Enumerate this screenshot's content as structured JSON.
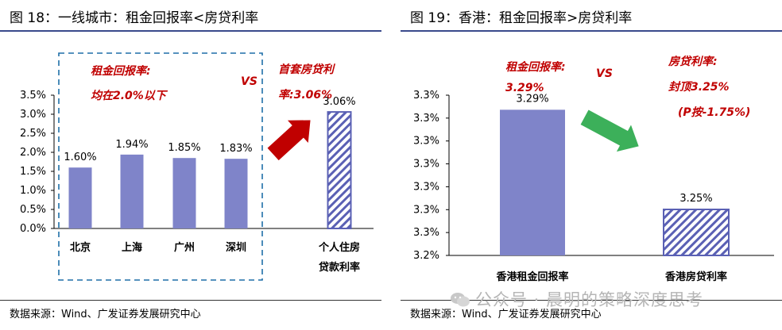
{
  "left": {
    "title": "图 18：一线城市：租金回报率<房贷利率",
    "source": "数据来源：Wind、广发证券发展研究中心",
    "annotations": {
      "rent_line1": "租金回报率:",
      "rent_line2": "均在2.0%以下",
      "vs": "VS",
      "mortgage_line1": "首套房贷利",
      "mortgage_line2": "率:3.06%"
    },
    "chart_data": {
      "type": "bar",
      "categories": [
        "北京",
        "上海",
        "广州",
        "深圳",
        "个人住房贷款利率"
      ],
      "category_lines": [
        [
          "北京"
        ],
        [
          "上海"
        ],
        [
          "广州"
        ],
        [
          "深圳"
        ],
        [
          "个人住房",
          "贷款利率"
        ]
      ],
      "values": [
        1.6,
        1.94,
        1.85,
        1.83,
        3.06
      ],
      "data_labels": [
        "1.60%",
        "1.94%",
        "1.85%",
        "1.83%",
        "3.06%"
      ],
      "hatched": [
        false,
        false,
        false,
        false,
        true
      ],
      "yticks": [
        "0.0%",
        "0.5%",
        "1.0%",
        "1.5%",
        "2.0%",
        "2.5%",
        "3.0%",
        "3.5%"
      ],
      "ylim": [
        0,
        3.5
      ],
      "grid": false,
      "colors": {
        "bar": "#7f84c9",
        "hatch": "#5a60b4",
        "arrow": "#c00000"
      }
    }
  },
  "right": {
    "title": "图 19：香港：租金回报率>房贷利率",
    "source": "数据来源：Wind、广发证券发展研究中心",
    "annotations": {
      "rent_line1": "租金回报率:",
      "rent_line2": "3.29%",
      "vs": "VS",
      "mortgage_line1": "房贷利率:",
      "mortgage_line2": "封顶3.25%",
      "mortgage_line3": "(P按-1.75%)"
    },
    "chart_data": {
      "type": "bar",
      "categories": [
        "香港租金回报率",
        "香港房贷利率"
      ],
      "values": [
        3.29,
        3.25
      ],
      "data_labels": [
        "3.29%",
        "3.25%"
      ],
      "hatched": [
        false,
        true
      ],
      "yticks": [
        "3.2%",
        "3.3%",
        "3.3%",
        "3.3%",
        "3.3%",
        "3.3%",
        "3.3%",
        "3.3%"
      ],
      "ylim": [
        3.22,
        3.297
      ],
      "grid": false,
      "colors": {
        "bar": "#7f84c9",
        "hatch": "#5a60b4",
        "arrow": "#3cb05a"
      }
    }
  },
  "watermark": "公众号 · 晨明的策略深度思考"
}
